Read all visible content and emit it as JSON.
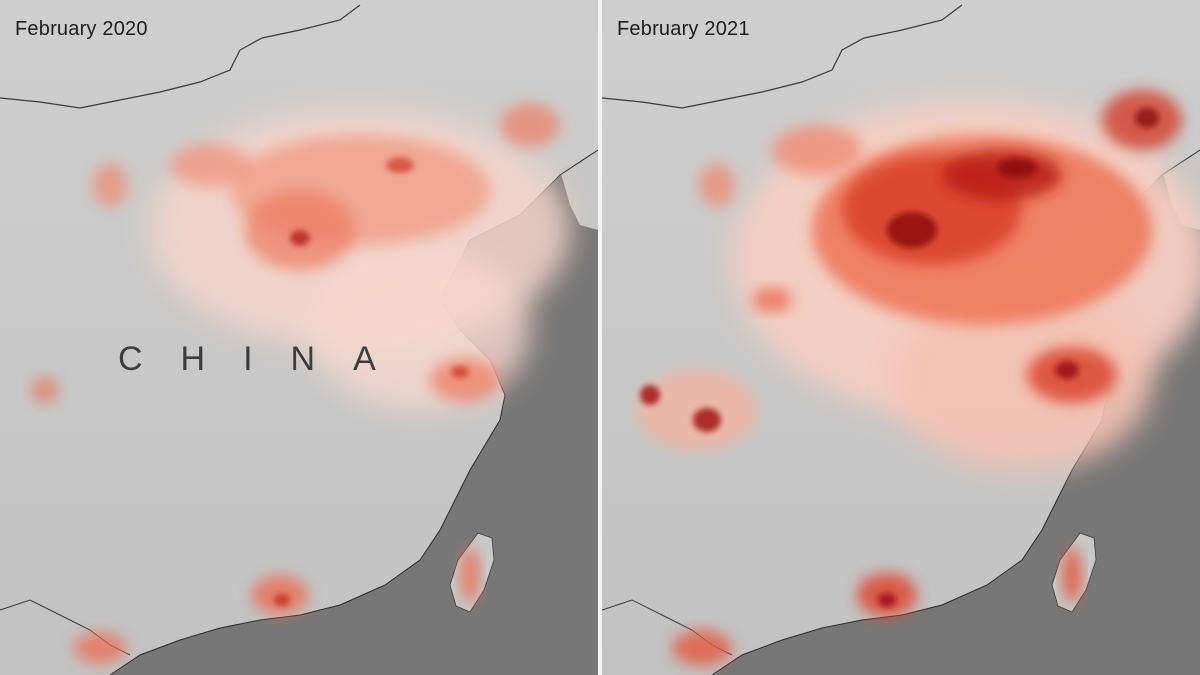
{
  "panels": [
    {
      "title": "February 2020",
      "country_label": "CHINA",
      "intensity": 0.55
    },
    {
      "title": "February 2021",
      "country_label": "",
      "intensity": 1.0
    }
  ],
  "colors": {
    "land": "#c9c9c9",
    "sea": "#7a7a7a",
    "plume_light": "#f8d3c6",
    "plume_mid": "#ef6a4c",
    "plume_dark": "#9a0f12",
    "border": "#3a3a3a"
  }
}
